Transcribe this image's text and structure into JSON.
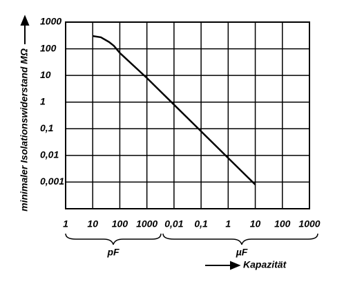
{
  "chart_data": {
    "type": "line",
    "ylabel": "minimaler Isolationswiderstand MΩ",
    "xlabel": "Kapazität",
    "x_group_labels": [
      "pF",
      "µF"
    ],
    "x": [
      10,
      20,
      40,
      60,
      100,
      1000,
      10000,
      100000,
      1000000,
      10000000
    ],
    "values": [
      300,
      270,
      180,
      130,
      70,
      8,
      0.8,
      0.08,
      0.008,
      0.0008
    ],
    "color": "#000000",
    "xscale": "log",
    "yscale": "log",
    "grid": true,
    "xlim": [
      1,
      1000000000
    ],
    "xticks": [
      1,
      10,
      100,
      1000,
      {
        "value": 10000,
        "label": "0,01"
      },
      {
        "value": 100000,
        "label": "0,1"
      },
      {
        "value": 1000000,
        "label": "1"
      },
      {
        "value": 10000000,
        "label": "10"
      },
      {
        "value": 100000000,
        "label": "100"
      },
      {
        "value": 1000000000,
        "label": "1000"
      }
    ],
    "ylim": [
      0.0001,
      1000
    ],
    "yticks": [
      1000,
      100,
      10,
      1,
      {
        "value": 0.1,
        "label": "0,1"
      },
      {
        "value": 0.01,
        "label": "0,01"
      },
      {
        "value": 0.001,
        "label": "0,001"
      }
    ]
  }
}
